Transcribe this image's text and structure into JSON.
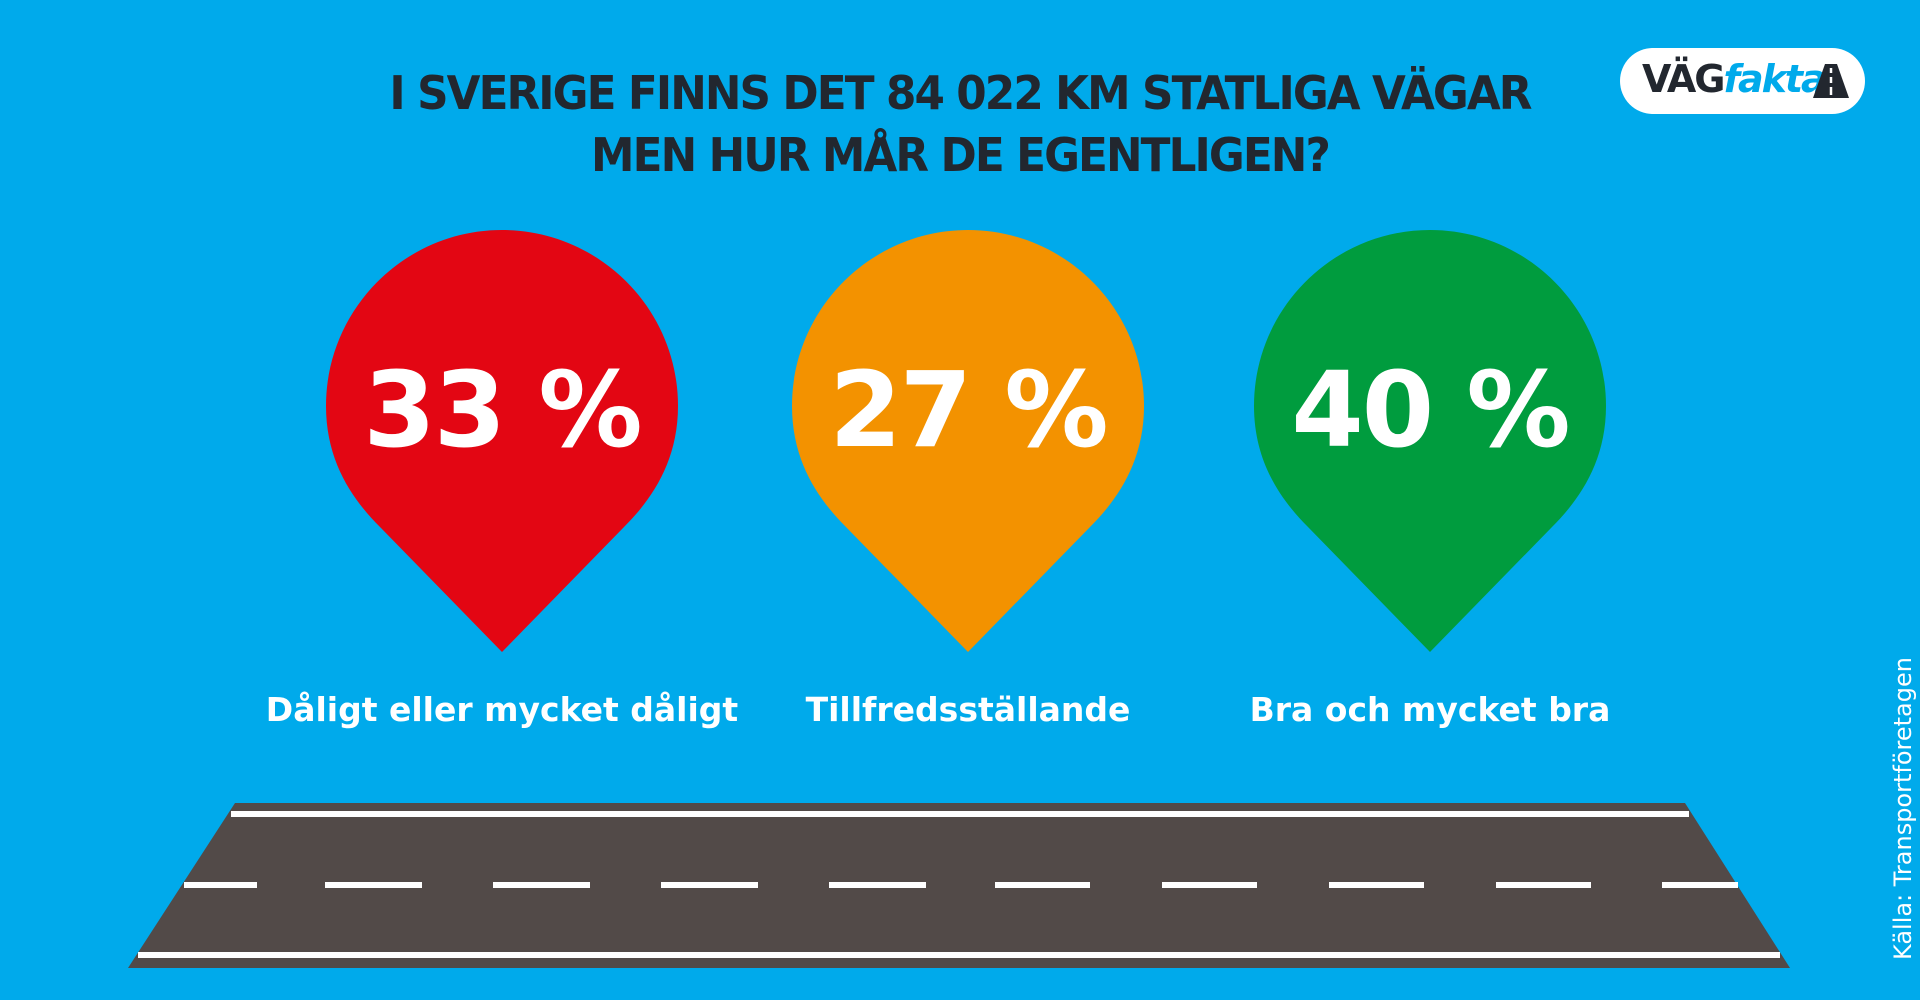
{
  "header": {
    "title_line1": "I SVERIGE FINNS DET 84 022 KM STATLIGA VÄGAR",
    "title_line2": "MEN HUR MÅR DE EGENTLIGEN?"
  },
  "logo": {
    "text_dark": "VÄG",
    "text_blue": "fakta",
    "icon": "road-icon"
  },
  "categories": [
    {
      "value_percent": 33,
      "value_text": "33 %",
      "label": "Dåligt eller mycket dåligt",
      "color": "#e30613"
    },
    {
      "value_percent": 27,
      "value_text": "27 %",
      "label": "Tillfredsställande",
      "color": "#f39200"
    },
    {
      "value_percent": 40,
      "value_text": "40 %",
      "label": "Bra och mycket bra",
      "color": "#009c3e"
    }
  ],
  "colors": {
    "background": "#00aaeb",
    "title": "#22272f",
    "road": "#524a48",
    "road_lines": "#ffffff"
  },
  "source": "Källa: Transportföretagen"
}
